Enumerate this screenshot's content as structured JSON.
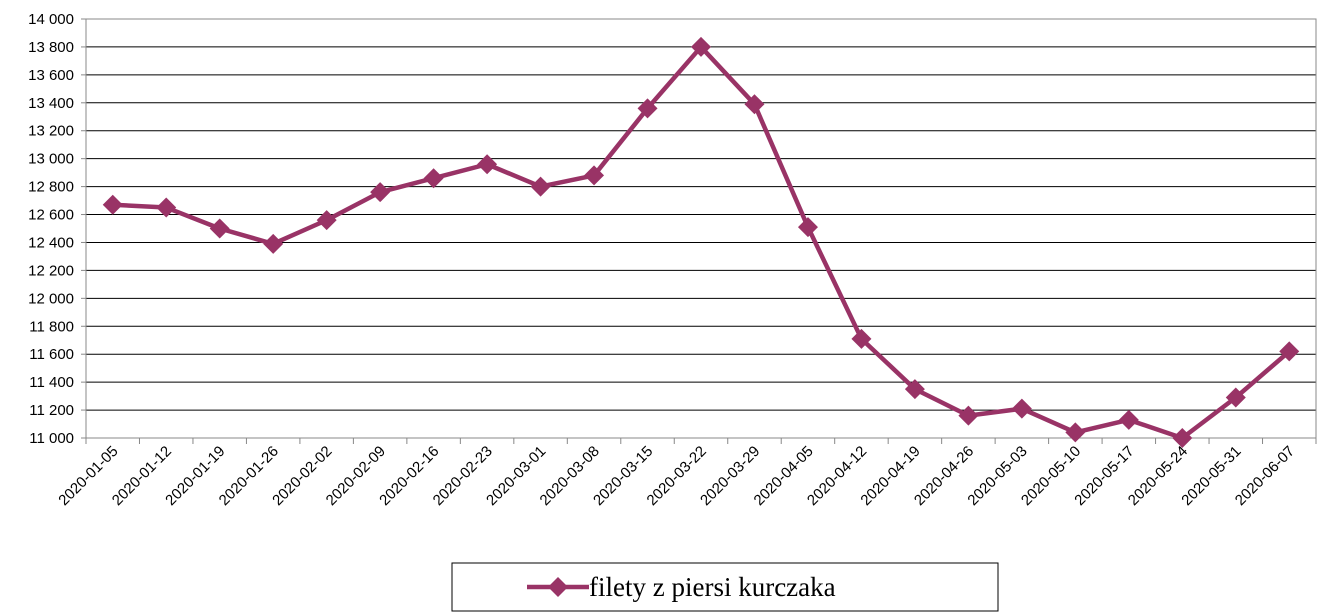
{
  "chart_data": {
    "type": "line",
    "categories": [
      "2020-01-05",
      "2020-01-12",
      "2020-01-19",
      "2020-01-26",
      "2020-02-02",
      "2020-02-09",
      "2020-02-16",
      "2020-02-23",
      "2020-03-01",
      "2020-03-08",
      "2020-03-15",
      "2020-03-22",
      "2020-03-29",
      "2020-04-05",
      "2020-04-12",
      "2020-04-19",
      "2020-04-26",
      "2020-05-03",
      "2020-05-10",
      "2020-05-17",
      "2020-05-24",
      "2020-05-31",
      "2020-06-07"
    ],
    "series": [
      {
        "name": "filety z piersi kurczaka",
        "color": "#993366",
        "values": [
          12670,
          12650,
          12500,
          12390,
          12560,
          12760,
          12860,
          12960,
          12800,
          12880,
          13360,
          13800,
          13390,
          12510,
          11710,
          11350,
          11160,
          11210,
          11040,
          11130,
          11000,
          11290,
          11620
        ]
      }
    ],
    "ylim": [
      11000,
      14000
    ],
    "yticks": [
      {
        "value": 11000,
        "label": "11 000"
      },
      {
        "value": 11200,
        "label": "11 200"
      },
      {
        "value": 11400,
        "label": "11 400"
      },
      {
        "value": 11600,
        "label": "11 600"
      },
      {
        "value": 11800,
        "label": "11 800"
      },
      {
        "value": 12000,
        "label": "12 000"
      },
      {
        "value": 12200,
        "label": "12 200"
      },
      {
        "value": 12400,
        "label": "12 400"
      },
      {
        "value": 12600,
        "label": "12 600"
      },
      {
        "value": 12800,
        "label": "12 800"
      },
      {
        "value": 13000,
        "label": "13 000"
      },
      {
        "value": 13200,
        "label": "13 200"
      },
      {
        "value": 13400,
        "label": "13 400"
      },
      {
        "value": 13600,
        "label": "13 600"
      },
      {
        "value": 13800,
        "label": "13 800"
      },
      {
        "value": 14000,
        "label": "14 000"
      }
    ],
    "grid": true,
    "legend": "bottom"
  }
}
